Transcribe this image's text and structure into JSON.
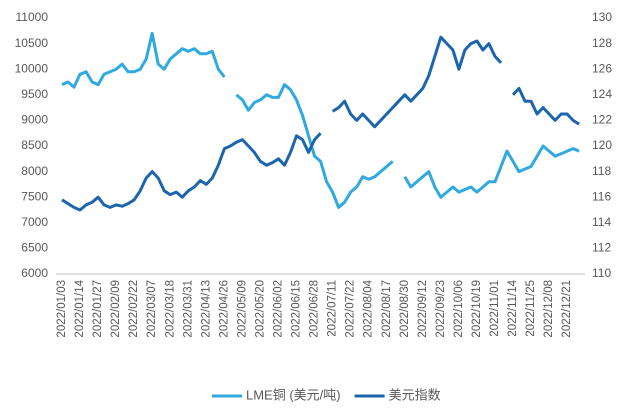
{
  "chart_data": {
    "type": "line",
    "categories": [
      "2022/01/03",
      null,
      null,
      "2022/01/14",
      null,
      null,
      "2022/01/27",
      null,
      null,
      "2022/02/09",
      null,
      null,
      "2022/02/22",
      null,
      null,
      "2022/03/07",
      null,
      null,
      "2022/03/18",
      null,
      null,
      "2022/03/31",
      null,
      null,
      "2022/04/13",
      null,
      null,
      "2022/04/26",
      null,
      null,
      "2022/05/09",
      null,
      null,
      "2022/05/20",
      null,
      null,
      "2022/06/02",
      null,
      null,
      "2022/06/15",
      null,
      null,
      "2022/06/28",
      null,
      null,
      "2022/07/11",
      null,
      null,
      "2022/07/22",
      null,
      null,
      "2022/08/04",
      null,
      null,
      "2022/08/17",
      null,
      null,
      "2022/08/30",
      null,
      null,
      "2022/09/12",
      null,
      null,
      "2022/09/23",
      null,
      null,
      "2022/10/06",
      null,
      null,
      "2022/10/19",
      null,
      null,
      "2022/11/01",
      null,
      null,
      "2022/11/14",
      null,
      null,
      "2022/11/25",
      null,
      null,
      "2022/12/08",
      null,
      null,
      "2022/12/21",
      null,
      null
    ],
    "series": [
      {
        "name": "LME铜 (美元/吨)",
        "color": "#2fa9e0",
        "values": [
          9700,
          9750,
          9650,
          9900,
          9950,
          9750,
          9700,
          9900,
          9950,
          10000,
          10100,
          9950,
          9950,
          10000,
          10200,
          10700,
          10100,
          10000,
          10200,
          10300,
          10400,
          10350,
          10400,
          10300,
          10300,
          10350,
          10000,
          9850,
          null,
          9500,
          9400,
          9200,
          9350,
          9400,
          9500,
          9450,
          9450,
          9700,
          9600,
          9400,
          9100,
          8700,
          8300,
          8200,
          7800,
          7600,
          7300,
          7400,
          7600,
          7700,
          7900,
          7850,
          7900,
          8000,
          8100,
          8200,
          null,
          7900,
          7700,
          7800,
          7900,
          8000,
          7700,
          7500,
          7600,
          7700,
          7600,
          7650,
          7700,
          7600,
          7700,
          7800,
          7800,
          8100,
          8400,
          8200,
          8000,
          8050,
          8100,
          8300,
          8500,
          8400,
          8300,
          8350,
          8400,
          8450,
          8400
        ]
      },
      {
        "name": "美元指数",
        "color": "#1c65ad",
        "axis": "y2",
        "values": [
          115.8,
          115.5,
          115.2,
          115.0,
          115.4,
          115.6,
          116.0,
          115.4,
          115.2,
          115.4,
          115.3,
          115.5,
          115.8,
          116.5,
          117.5,
          118.0,
          117.5,
          116.5,
          116.2,
          116.4,
          116.0,
          116.5,
          116.8,
          117.3,
          117.0,
          117.5,
          118.5,
          119.8,
          120.0,
          120.3,
          120.5,
          120.0,
          119.5,
          118.8,
          118.5,
          118.7,
          119.0,
          118.5,
          119.5,
          120.8,
          120.5,
          119.5,
          120.5,
          121.0,
          null,
          122.7,
          123.0,
          123.5,
          122.5,
          122.0,
          122.5,
          122.0,
          121.5,
          122.0,
          122.5,
          123.0,
          123.5,
          124.0,
          123.5,
          124.0,
          124.5,
          125.5,
          127.0,
          128.5,
          128.0,
          127.5,
          126.0,
          127.5,
          128.0,
          128.2,
          127.5,
          128.0,
          127.0,
          126.5,
          null,
          124.0,
          124.5,
          123.5,
          123.5,
          122.5,
          123.0,
          122.5,
          122.0,
          122.5,
          122.5,
          122.0,
          121.7
        ]
      }
    ],
    "ylim": [
      6000,
      11000
    ],
    "yticks": [
      6000,
      6500,
      7000,
      7500,
      8000,
      8500,
      9000,
      9500,
      10000,
      10500,
      11000
    ],
    "y2lim": [
      110,
      130
    ],
    "y2ticks": [
      110,
      112,
      114,
      116,
      118,
      120,
      122,
      124,
      126,
      128,
      130
    ],
    "legend": "bottom",
    "grid": false
  }
}
